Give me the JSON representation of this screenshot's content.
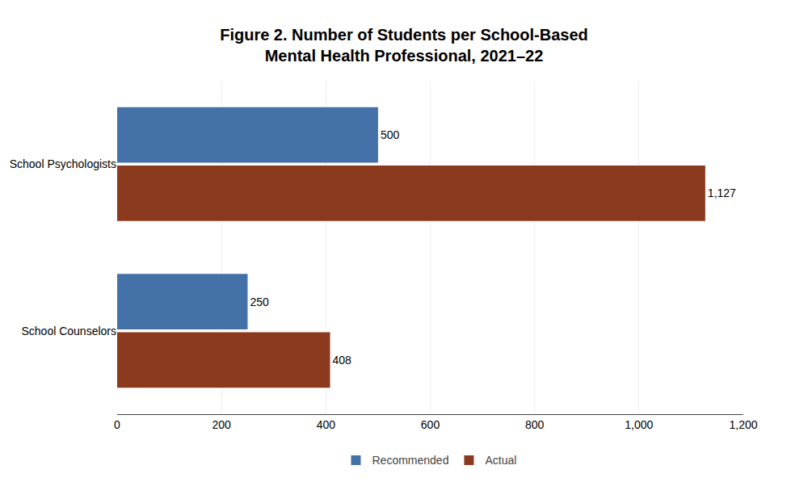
{
  "chart_data": {
    "type": "bar",
    "orientation": "horizontal",
    "title": "Figure 2. Number of Students per School-Based\nMental Health Professional, 2021–22",
    "categories": [
      "School Psychologists",
      "School Counselors"
    ],
    "series": [
      {
        "name": "Recommended",
        "color": "#4472A8",
        "values": [
          500,
          250
        ]
      },
      {
        "name": "Actual",
        "color": "#8B3A1E",
        "values": [
          1127,
          408
        ],
        "value_labels": [
          "1,127",
          "408"
        ]
      }
    ],
    "xlim": [
      0,
      1200
    ],
    "xticks": [
      0,
      200,
      400,
      600,
      800,
      {
        "value": 1000,
        "label": "1,000"
      },
      {
        "value": 1200,
        "label": "1,200"
      }
    ],
    "grid": true,
    "legend": "bottom",
    "data_labels": true
  }
}
